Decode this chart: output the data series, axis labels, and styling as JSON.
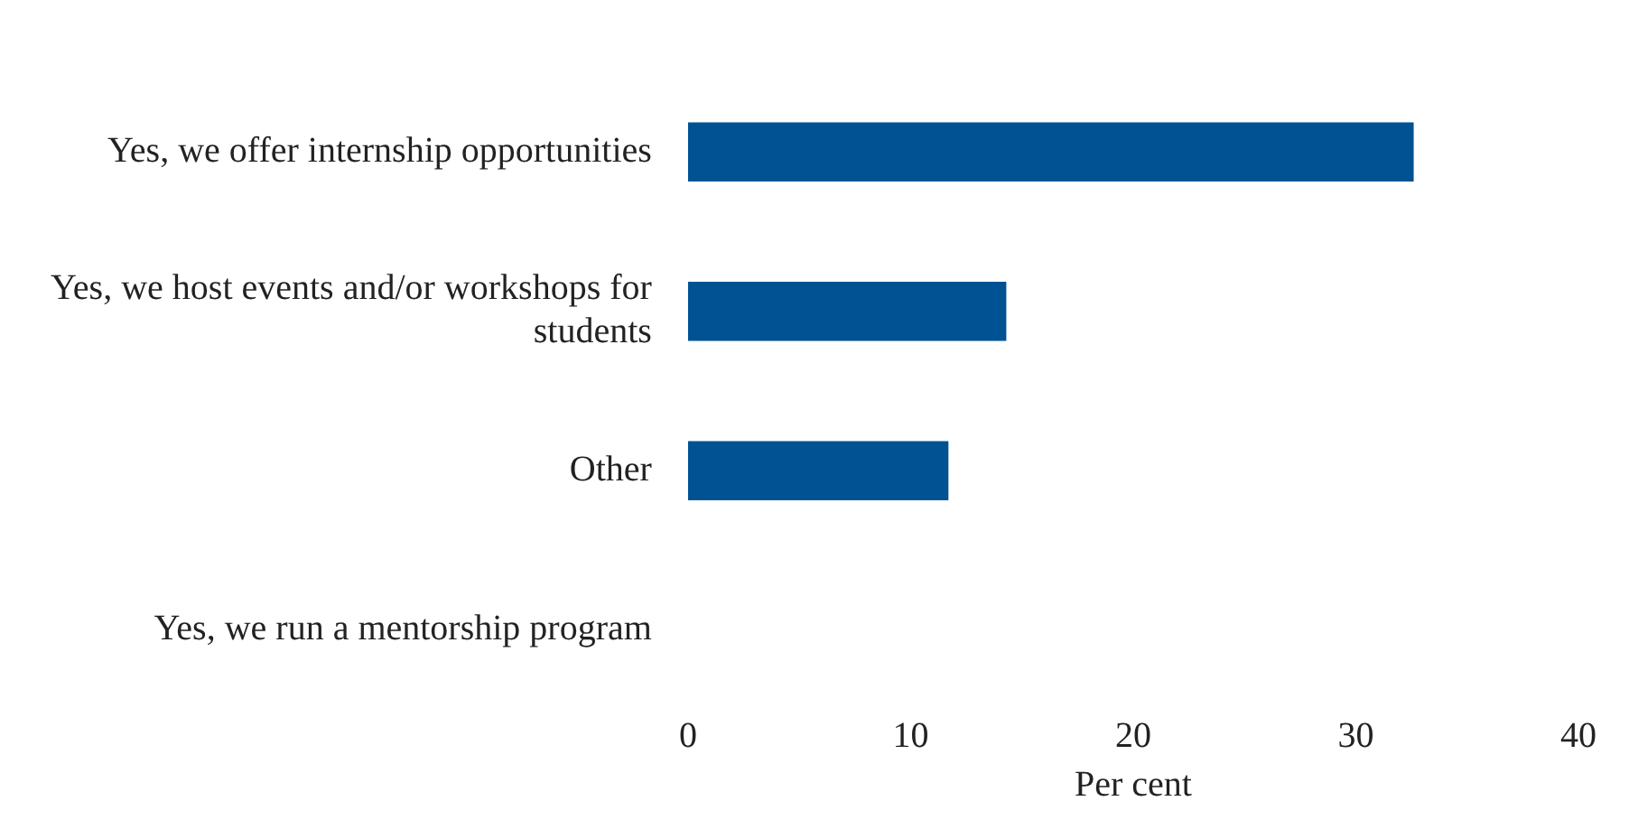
{
  "chart_data": {
    "type": "bar",
    "orientation": "horizontal",
    "xlabel": "Per cent",
    "categories": [
      "Yes, we offer internship opportunities",
      "Yes, we host events and/or workshops for students",
      "Other",
      "Yes, we run a mentorship program"
    ],
    "values": [
      32.6,
      14.3,
      11.7,
      0
    ],
    "color": "#005293",
    "xlim": [
      0,
      40
    ],
    "xticks": [
      0,
      10,
      20,
      30,
      40
    ],
    "grid": false,
    "legend": false
  }
}
